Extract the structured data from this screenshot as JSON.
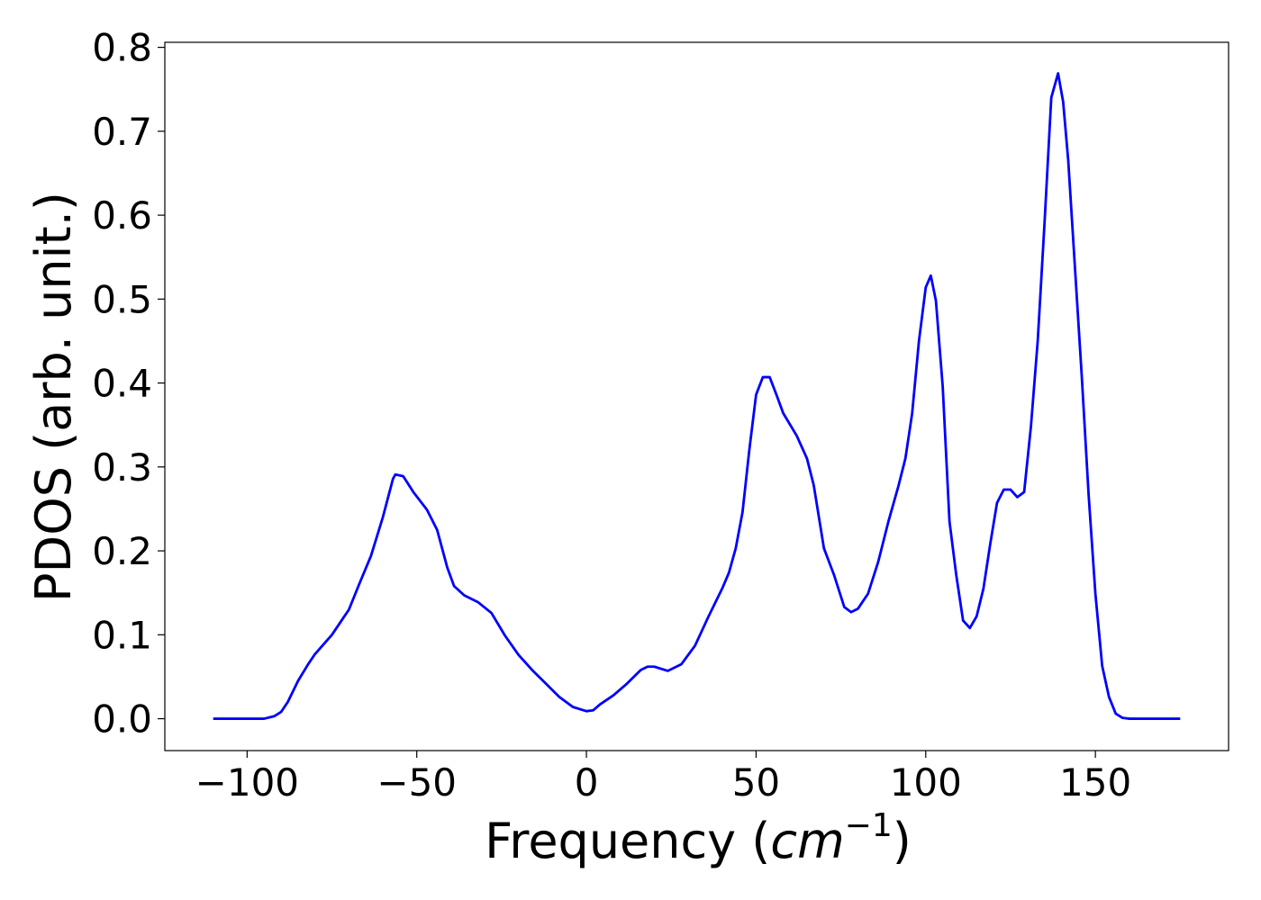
{
  "chart_data": {
    "type": "line",
    "x_label_parts": [
      "Frequency (",
      "cm",
      "−1",
      ")"
    ],
    "y_label": "PDOS (arb. unit.)",
    "x": [
      -110,
      -95,
      -92,
      -90,
      -88,
      -85,
      -82,
      -80,
      -75,
      -70,
      -67,
      -63.5,
      -60,
      -57,
      -56.3,
      -54,
      -51,
      -47,
      -44,
      -41,
      -39,
      -36,
      -32,
      -28,
      -24,
      -20,
      -16,
      -12,
      -8,
      -4,
      0,
      2,
      4,
      8,
      12,
      16,
      18,
      20,
      24,
      28,
      32,
      36,
      40,
      42,
      44,
      46,
      48,
      50,
      52,
      54,
      56,
      58,
      62,
      65,
      67,
      70,
      73,
      76,
      78,
      80,
      83,
      86,
      89,
      92,
      94,
      96,
      98,
      100,
      101.5,
      103,
      105,
      107,
      109,
      111,
      113,
      115,
      117,
      119,
      121,
      123,
      125,
      127,
      129,
      131,
      133,
      135,
      137,
      139,
      140.5,
      142,
      144,
      146,
      148,
      150,
      152,
      154,
      156,
      158,
      160,
      175
    ],
    "series": [
      {
        "name": "PDOS",
        "color": "#0000ff",
        "values": [
          0,
          0,
          0.003,
          0.008,
          0.02,
          0.045,
          0.065,
          0.077,
          0.1,
          0.13,
          0.16,
          0.194,
          0.24,
          0.286,
          0.291,
          0.289,
          0.27,
          0.249,
          0.225,
          0.18,
          0.158,
          0.147,
          0.139,
          0.126,
          0.099,
          0.076,
          0.058,
          0.042,
          0.026,
          0.014,
          0.009,
          0.01,
          0.017,
          0.028,
          0.042,
          0.058,
          0.062,
          0.062,
          0.057,
          0.065,
          0.087,
          0.122,
          0.155,
          0.174,
          0.203,
          0.246,
          0.32,
          0.386,
          0.407,
          0.407,
          0.386,
          0.364,
          0.337,
          0.31,
          0.278,
          0.203,
          0.171,
          0.133,
          0.127,
          0.131,
          0.149,
          0.187,
          0.235,
          0.278,
          0.31,
          0.364,
          0.45,
          0.514,
          0.528,
          0.498,
          0.396,
          0.235,
          0.171,
          0.117,
          0.108,
          0.122,
          0.155,
          0.208,
          0.257,
          0.273,
          0.273,
          0.264,
          0.27,
          0.348,
          0.45,
          0.59,
          0.74,
          0.769,
          0.735,
          0.665,
          0.536,
          0.407,
          0.267,
          0.149,
          0.063,
          0.026,
          0.006,
          0.001,
          0,
          0
        ]
      }
    ],
    "xlim": [
      -124.25,
      189.25
    ],
    "ylim": [
      -0.038,
      0.806
    ],
    "xticks": [
      {
        "value": -100,
        "label": "−100"
      },
      {
        "value": -50,
        "label": "−50"
      },
      0,
      50,
      100,
      150
    ],
    "yticks": [
      {
        "value": 0,
        "label": "0.0"
      },
      0.1,
      0.2,
      0.3,
      0.4,
      0.5,
      0.6,
      0.7,
      0.8
    ]
  }
}
